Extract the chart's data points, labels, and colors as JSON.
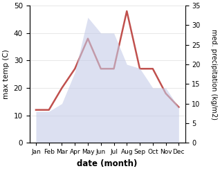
{
  "months": [
    "Jan",
    "Feb",
    "Mar",
    "Apr",
    "May",
    "Jun",
    "Jul",
    "Aug",
    "Sep",
    "Oct",
    "Nov",
    "Dec"
  ],
  "month_indices": [
    1,
    2,
    3,
    4,
    5,
    6,
    7,
    8,
    9,
    10,
    11,
    12
  ],
  "temperature": [
    12,
    12,
    20,
    27,
    38,
    27,
    27,
    48,
    27,
    27,
    18,
    13
  ],
  "precipitation": [
    8,
    8,
    10,
    18,
    32,
    28,
    28,
    20,
    19,
    14,
    14,
    9
  ],
  "temp_color": "#c0504d",
  "precip_color": "#c5cce8",
  "temp_ylim": [
    0,
    50
  ],
  "precip_ylim": [
    0,
    35
  ],
  "temp_yticks": [
    0,
    10,
    20,
    30,
    40,
    50
  ],
  "precip_yticks": [
    0,
    5,
    10,
    15,
    20,
    25,
    30,
    35
  ],
  "xlabel": "date (month)",
  "ylabel_left": "max temp (C)",
  "ylabel_right": "med. precipitation (kg/m2)",
  "bg_color": "#ffffff",
  "line_width": 1.8,
  "fill_alpha": 0.6
}
